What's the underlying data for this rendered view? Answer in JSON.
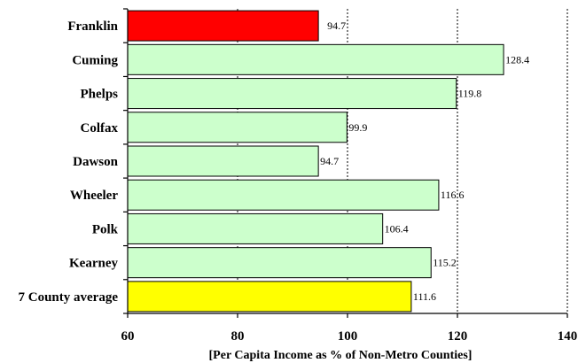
{
  "chart_data": {
    "type": "bar",
    "orientation": "horizontal",
    "categories": [
      "Franklin",
      "Cuming",
      "Phelps",
      "Colfax",
      "Dawson",
      "Wheeler",
      "Polk",
      "Kearney",
      "7 County average"
    ],
    "values": [
      94.7,
      128.4,
      119.8,
      99.9,
      94.7,
      116.6,
      106.4,
      115.2,
      111.6
    ],
    "value_labels": [
      "94.7",
      "128.4",
      "119.8",
      "99.9",
      "94.7",
      "116.6",
      "106.4",
      "115.2",
      "111.6"
    ],
    "bar_colors": [
      "#ff0000",
      "#ccffcc",
      "#ccffcc",
      "#ccffcc",
      "#ccffcc",
      "#ccffcc",
      "#ccffcc",
      "#ccffcc",
      "#ffff00"
    ],
    "xlabel": "[Per Capita Income as % of Non-Metro Counties]",
    "xlim": [
      60,
      140
    ],
    "xticks": [
      60,
      80,
      100,
      120,
      140
    ],
    "grid": "vertical dotted at 100, 120, 140",
    "legend": "none"
  }
}
